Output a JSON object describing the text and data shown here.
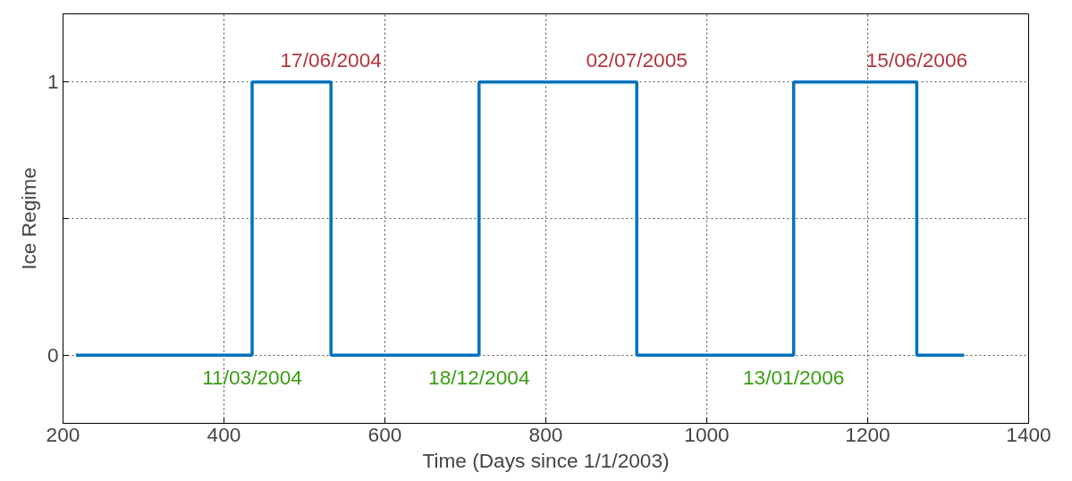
{
  "chart_data": {
    "type": "step",
    "xlabel": "Time (Days since 1/1/2003)",
    "ylabel": "Ice Regime",
    "x": [
      216,
      435,
      533,
      717,
      913,
      1108,
      1261,
      1320
    ],
    "series": [
      {
        "color": "#0072bd",
        "values": [
          0,
          1,
          0,
          1,
          0,
          1,
          0,
          0
        ]
      }
    ],
    "xlim": [
      200,
      1400
    ],
    "xticks": [
      200,
      400,
      600,
      800,
      1000,
      1200,
      1400
    ],
    "ylim": [
      -0.25,
      1.25
    ],
    "yticks": [
      0,
      {
        "value": 0.5,
        "label": null
      },
      1
    ],
    "grid": true,
    "line_style": "solid",
    "marker": "none",
    "annotations": [
      {
        "text": "11/03/2004",
        "x": 435,
        "y": 0
      },
      {
        "text": "17/06/2004",
        "x": 533,
        "y": 1
      },
      {
        "text": "18/12/2004",
        "x": 717,
        "y": 0
      },
      {
        "text": "02/07/2005",
        "x": 913,
        "y": 1
      },
      {
        "text": "13/01/2006",
        "x": 1108,
        "y": 0
      },
      {
        "text": "15/06/2006",
        "x": 1261,
        "y": 1
      }
    ]
  }
}
